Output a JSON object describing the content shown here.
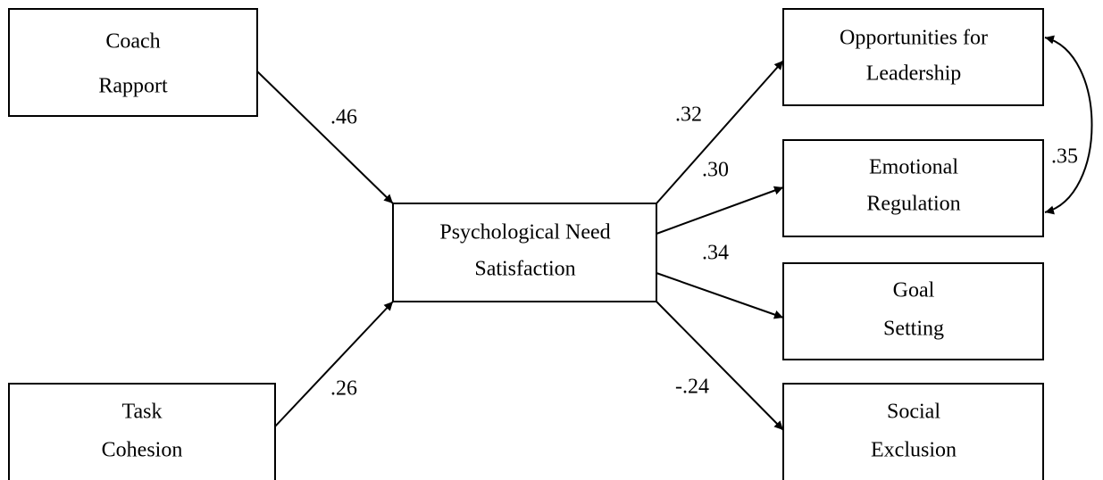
{
  "nodes": [
    {
      "lines": [
        "Coach",
        "Rapport"
      ]
    },
    {
      "lines": [
        "Task",
        "Cohesion"
      ]
    },
    {
      "lines": [
        "Psychological Need",
        "Satisfaction"
      ]
    },
    {
      "lines": [
        "Opportunities for",
        "Leadership"
      ]
    },
    {
      "lines": [
        "Emotional",
        "Regulation"
      ]
    },
    {
      "lines": [
        "Goal",
        "Setting"
      ]
    },
    {
      "lines": [
        "Social",
        "Exclusion"
      ]
    }
  ],
  "edges": [
    {
      "label": ".46"
    },
    {
      "label": ".26"
    },
    {
      "label": ".32"
    },
    {
      "label": ".30"
    },
    {
      "label": ".34"
    },
    {
      "label": "-.24"
    },
    {
      "label": ".35"
    }
  ]
}
